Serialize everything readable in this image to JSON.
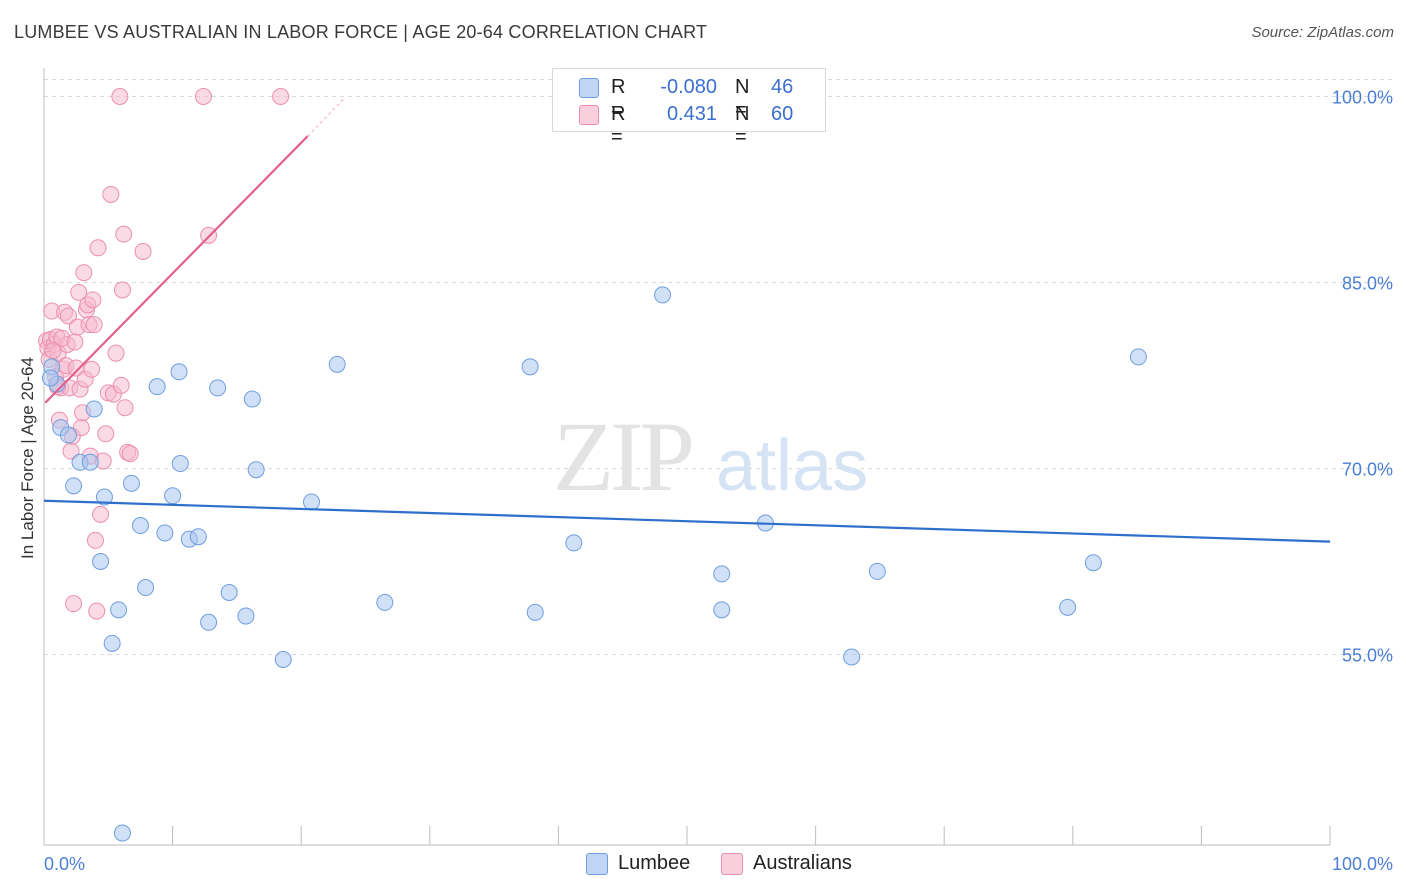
{
  "title": "LUMBEE VS AUSTRALIAN IN LABOR FORCE | AGE 20-64 CORRELATION CHART",
  "source": "Source: ZipAtlas.com",
  "watermark": {
    "zip": "ZIP",
    "atlas": "atlas"
  },
  "legend": {
    "rows": [
      {
        "r_label": "R =",
        "r_value": "-0.080",
        "n_label": "N =",
        "n_value": "46"
      },
      {
        "r_label": "R =",
        "r_value": "0.431",
        "n_label": "N =",
        "n_value": "60"
      }
    ]
  },
  "bottom_legend": {
    "lumbee": "Lumbee",
    "australians": "Australians"
  },
  "colors": {
    "lumbee_fill": "#a9c6ef",
    "lumbee_stroke": "#6f9ee0",
    "lumbee_line": "#2e6fcc",
    "aus_fill": "#f6b8cb",
    "aus_stroke": "#ec8fae",
    "aus_line": "#e2618c",
    "tick_text": "#4a7fd6",
    "grid": "#d9d9d9"
  },
  "chart_data": {
    "type": "scatter",
    "title": "LUMBEE VS AUSTRALIAN IN LABOR FORCE | AGE 20-64 CORRELATION CHART",
    "xlabel": "",
    "ylabel": "In Labor Force | Age 20-64",
    "xlim": [
      0,
      100
    ],
    "ylim": [
      40,
      101.5
    ],
    "x_tick_labels": [
      "0.0%",
      "100.0%"
    ],
    "y_ticks": [
      55,
      70,
      85,
      100
    ],
    "y_tick_labels": [
      "55.0%",
      "70.0%",
      "85.0%",
      "100.0%"
    ],
    "grid": true,
    "series": [
      {
        "name": "Lumbee",
        "r": -0.08,
        "n": 46,
        "trend": {
          "x": [
            0,
            100
          ],
          "y": [
            67.4,
            64.1
          ]
        },
        "points": [
          [
            0.6,
            78.2
          ],
          [
            1.0,
            76.8
          ],
          [
            1.3,
            73.3
          ],
          [
            1.9,
            72.7
          ],
          [
            2.3,
            68.6
          ],
          [
            2.8,
            70.5
          ],
          [
            3.6,
            70.5
          ],
          [
            3.9,
            74.8
          ],
          [
            4.4,
            62.5
          ],
          [
            4.7,
            67.7
          ],
          [
            5.3,
            55.9
          ],
          [
            5.8,
            58.6
          ],
          [
            6.1,
            40.6
          ],
          [
            6.8,
            68.8
          ],
          [
            7.5,
            65.4
          ],
          [
            7.9,
            60.4
          ],
          [
            8.8,
            76.6
          ],
          [
            9.4,
            64.8
          ],
          [
            10.0,
            67.8
          ],
          [
            10.5,
            77.8
          ],
          [
            10.6,
            70.4
          ],
          [
            11.3,
            64.3
          ],
          [
            12.0,
            64.5
          ],
          [
            12.8,
            57.6
          ],
          [
            13.5,
            76.5
          ],
          [
            14.4,
            60.0
          ],
          [
            15.7,
            58.1
          ],
          [
            16.2,
            75.6
          ],
          [
            16.5,
            69.9
          ],
          [
            18.6,
            54.6
          ],
          [
            20.8,
            67.3
          ],
          [
            22.8,
            78.4
          ],
          [
            26.5,
            59.2
          ],
          [
            37.8,
            78.2
          ],
          [
            38.2,
            58.4
          ],
          [
            41.2,
            64.0
          ],
          [
            48.1,
            84.0
          ],
          [
            52.7,
            61.5
          ],
          [
            52.7,
            58.6
          ],
          [
            56.1,
            65.6
          ],
          [
            62.8,
            54.8
          ],
          [
            64.8,
            61.7
          ],
          [
            79.6,
            58.8
          ],
          [
            81.6,
            62.4
          ],
          [
            85.1,
            79.0
          ],
          [
            0.5,
            77.3
          ]
        ]
      },
      {
        "name": "Australians",
        "r": 0.431,
        "n": 60,
        "trend": {
          "x": [
            0.1,
            20.5
          ],
          "y": [
            75.3,
            96.8
          ]
        },
        "trend_dashed": {
          "x": [
            20.5,
            23.3
          ],
          "y": [
            96.8,
            99.8
          ]
        },
        "points": [
          [
            0.2,
            80.3
          ],
          [
            0.3,
            79.7
          ],
          [
            0.4,
            78.8
          ],
          [
            0.5,
            80.4
          ],
          [
            0.6,
            82.7
          ],
          [
            0.8,
            80.0
          ],
          [
            0.9,
            77.4
          ],
          [
            1.0,
            80.6
          ],
          [
            1.1,
            79.3
          ],
          [
            1.2,
            73.9
          ],
          [
            1.3,
            76.5
          ],
          [
            1.5,
            78.0
          ],
          [
            1.6,
            82.6
          ],
          [
            1.7,
            78.3
          ],
          [
            1.8,
            80.0
          ],
          [
            1.9,
            82.3
          ],
          [
            2.0,
            76.5
          ],
          [
            2.1,
            71.4
          ],
          [
            2.2,
            72.6
          ],
          [
            2.3,
            59.1
          ],
          [
            2.5,
            78.1
          ],
          [
            2.6,
            81.4
          ],
          [
            2.7,
            84.2
          ],
          [
            2.8,
            76.4
          ],
          [
            2.9,
            73.3
          ],
          [
            3.0,
            74.5
          ],
          [
            3.1,
            85.8
          ],
          [
            3.2,
            77.2
          ],
          [
            3.3,
            82.8
          ],
          [
            3.4,
            83.2
          ],
          [
            3.5,
            81.6
          ],
          [
            3.6,
            71.0
          ],
          [
            3.8,
            83.6
          ],
          [
            3.9,
            81.6
          ],
          [
            4.0,
            64.2
          ],
          [
            4.1,
            58.5
          ],
          [
            4.2,
            87.8
          ],
          [
            4.4,
            66.3
          ],
          [
            4.6,
            70.6
          ],
          [
            4.8,
            72.8
          ],
          [
            5.0,
            76.1
          ],
          [
            5.2,
            92.1
          ],
          [
            5.4,
            76.0
          ],
          [
            5.6,
            79.3
          ],
          [
            5.9,
            100.0
          ],
          [
            6.0,
            76.7
          ],
          [
            6.1,
            84.4
          ],
          [
            6.2,
            88.9
          ],
          [
            6.3,
            74.9
          ],
          [
            6.5,
            71.3
          ],
          [
            6.7,
            71.2
          ],
          [
            7.7,
            87.5
          ],
          [
            12.4,
            100.0
          ],
          [
            12.8,
            88.8
          ],
          [
            18.4,
            100.0
          ],
          [
            1.4,
            80.5
          ],
          [
            0.7,
            79.5
          ],
          [
            2.4,
            80.2
          ],
          [
            3.7,
            78.0
          ],
          [
            1.05,
            76.6
          ]
        ]
      }
    ]
  }
}
